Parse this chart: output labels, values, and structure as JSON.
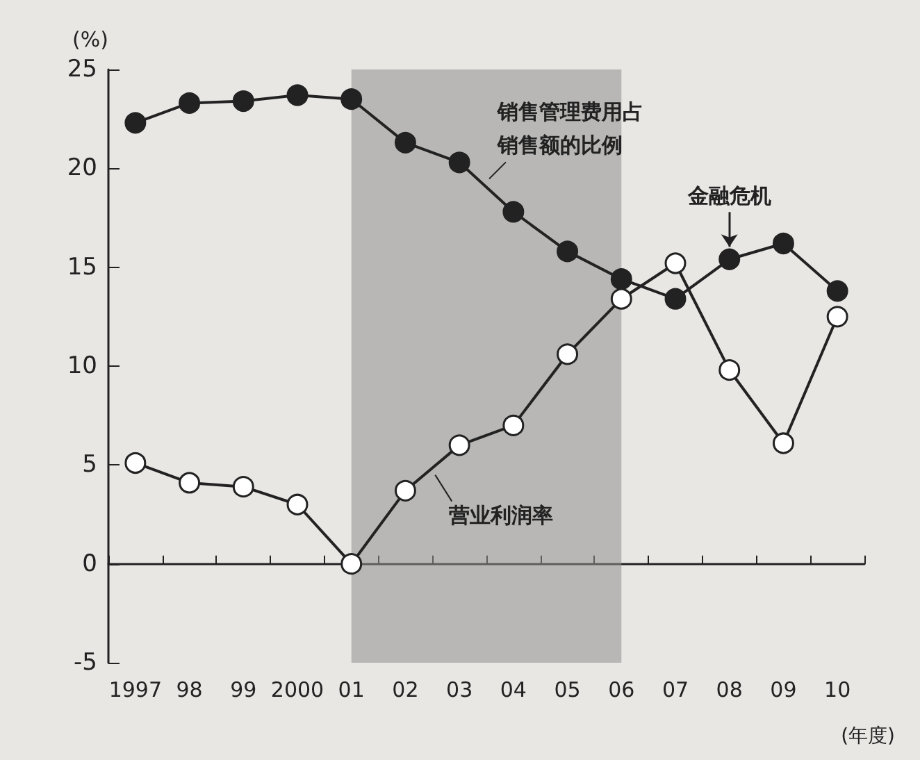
{
  "chart_data": {
    "type": "line",
    "ylabel": "(%)",
    "xlabel": "(年度)",
    "categories": [
      "1997",
      "98",
      "99",
      "2000",
      "01",
      "02",
      "03",
      "04",
      "05",
      "06",
      "07",
      "08",
      "09",
      "10"
    ],
    "series": [
      {
        "name": "销售管理费用占销售额的比例",
        "color": "#222222",
        "values": [
          22.3,
          23.3,
          23.4,
          23.7,
          23.5,
          21.3,
          20.3,
          17.8,
          15.8,
          14.4,
          13.4,
          15.4,
          16.2,
          13.8
        ]
      },
      {
        "name": "营业利润率",
        "color": "#ffffff",
        "values": [
          5.1,
          4.1,
          3.9,
          3.0,
          0,
          3.7,
          6.0,
          7.0,
          10.6,
          13.4,
          15.2,
          9.8,
          6.1,
          12.5
        ]
      }
    ],
    "ylim": [
      -5,
      25
    ],
    "yticks": [
      -5,
      0,
      5,
      10,
      15,
      20,
      25
    ],
    "bands": [
      {
        "axis": "x",
        "from": "01",
        "to": "06",
        "color": "#8f8f8f"
      }
    ],
    "annotations": [
      {
        "text": "金融危机",
        "x": "08",
        "y": 15.4
      }
    ],
    "marker": "circle",
    "line_style": "solid"
  }
}
